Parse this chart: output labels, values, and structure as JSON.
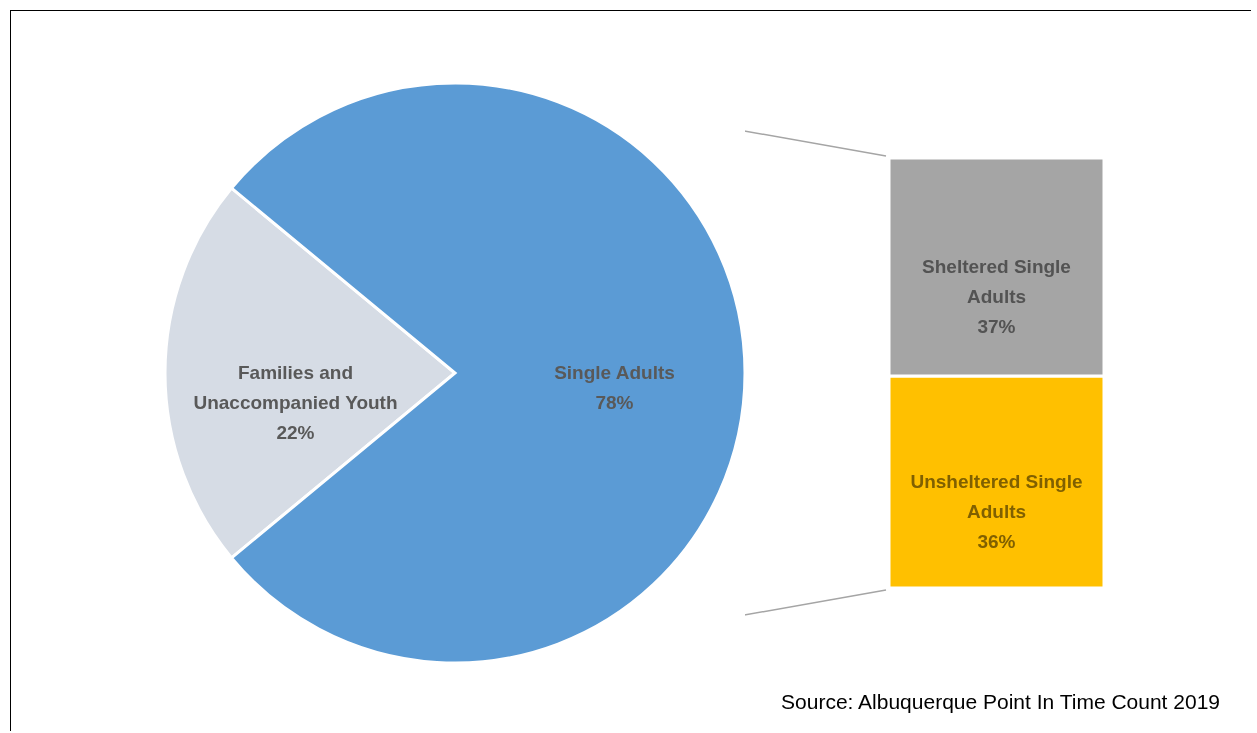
{
  "chart_data": [
    {
      "type": "pie",
      "categories": [
        "Families and Unaccompanied Youth",
        "Single Adults"
      ],
      "values": [
        22,
        78
      ],
      "colors": [
        "#d6dce5",
        "#5b9bd5"
      ],
      "value_labels": [
        "22%",
        "78%"
      ]
    },
    {
      "type": "bar",
      "stacked": true,
      "categories": [
        null
      ],
      "series": [
        {
          "name": "Unsheltered Single Adults",
          "color": "#ffc000",
          "values": [
            36
          ],
          "value_labels": [
            "36%"
          ]
        },
        {
          "name": "Sheltered Single Adults",
          "color": "#a5a5a5",
          "values": [
            37
          ],
          "value_labels": [
            "37%"
          ]
        }
      ],
      "annotations": [
        "Source: Albuquerque Point In Time Count 2019"
      ]
    }
  ]
}
